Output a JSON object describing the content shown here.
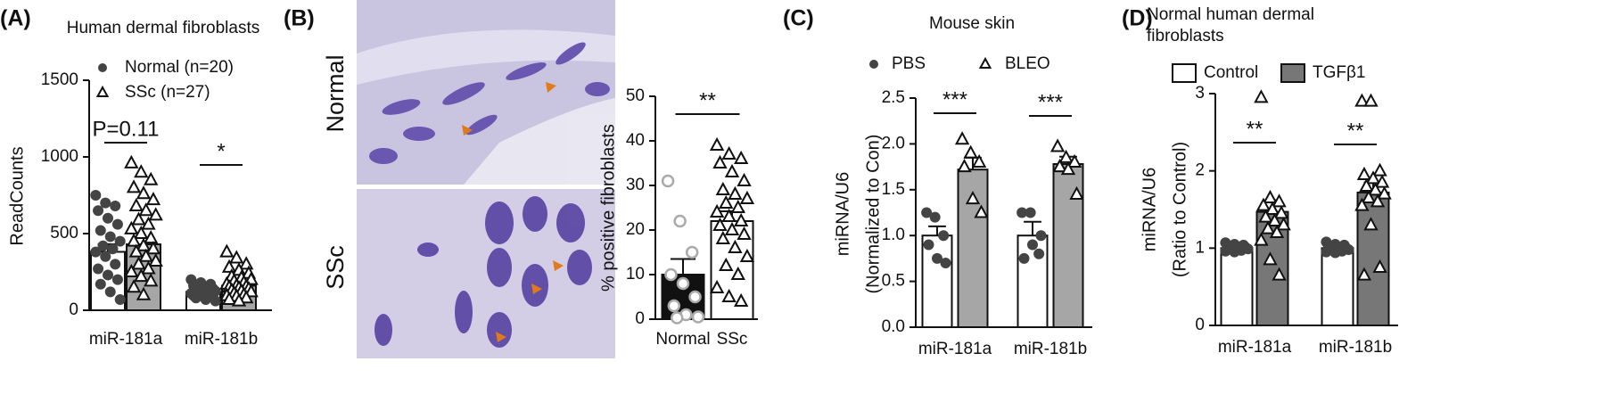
{
  "chart_data": [
    {
      "type": "bar",
      "panel": "(A)",
      "title": "Human dermal fibroblasts",
      "ylabel": "ReadCounts",
      "categories": [
        "miR-181a",
        "miR-181b"
      ],
      "ylim": [
        0,
        1500
      ],
      "yticks": [
        0,
        500,
        1000,
        1500
      ],
      "series": [
        {
          "name": "Normal (n=20)",
          "color": "#ffffff",
          "marker": "circle",
          "point_color": "#444444",
          "values": [
            381,
            120
          ],
          "errors": [
            50,
            10
          ],
          "points": [
            [
              750,
              700,
              680,
              650,
              600,
              560,
              520,
              480,
              450,
              420,
              400,
              380,
              350,
              300,
              270,
              230,
              200,
              170,
              120,
              70
            ],
            [
              200,
              180,
              170,
              160,
              150,
              140,
              135,
              130,
              125,
              120,
              115,
              110,
              105,
              100,
              95,
              90,
              85,
              80,
              70,
              60
            ]
          ]
        },
        {
          "name": "SSc (n=27)",
          "color": "#a6a6a6",
          "marker": "triangle",
          "point_color": "#111111",
          "values": [
            430,
            160
          ],
          "errors": [
            45,
            15
          ],
          "points": [
            [
              960,
              900,
              850,
              800,
              760,
              720,
              680,
              650,
              620,
              590,
              560,
              530,
              500,
              470,
              450,
              420,
              400,
              380,
              350,
              320,
              300,
              270,
              250,
              220,
              190,
              150,
              100
            ],
            [
              380,
              340,
              300,
              280,
              260,
              240,
              220,
              210,
              200,
              190,
              180,
              170,
              160,
              155,
              150,
              145,
              140,
              130,
              125,
              120,
              110,
              100,
              95,
              90,
              80,
              70,
              60
            ]
          ]
        }
      ],
      "significance": [
        "P=0.11",
        "*"
      ]
    },
    {
      "type": "bar",
      "panel": "(B)",
      "image_labels": [
        "Normal",
        "SSc"
      ],
      "ylabel": "% positive fibroblasts",
      "categories": [
        "Normal",
        "SSc"
      ],
      "ylim": [
        0,
        50
      ],
      "yticks": [
        0,
        10,
        20,
        30,
        40,
        50
      ],
      "values": [
        10,
        22
      ],
      "errors": [
        3.5,
        2.2
      ],
      "colors": [
        "#111111",
        "#ffffff"
      ],
      "markers": [
        "open-circle",
        "triangle"
      ],
      "point_colors": [
        "#aaaaaa",
        "#111111"
      ],
      "points": [
        [
          31,
          22,
          15,
          10,
          8,
          5,
          3,
          1,
          0.5,
          0.3
        ],
        [
          39,
          37,
          36,
          35,
          33,
          31,
          29,
          28,
          27,
          26,
          25,
          24,
          23,
          22,
          21,
          20,
          19,
          18,
          16,
          14,
          12,
          10,
          7,
          5,
          4
        ]
      ],
      "significance": [
        "**"
      ]
    },
    {
      "type": "bar",
      "panel": "(C)",
      "title": "Mouse skin",
      "ylabel": [
        "miRNA/U6",
        "(Normalized to Con)"
      ],
      "categories": [
        "miR-181a",
        "miR-181b"
      ],
      "ylim": [
        0,
        2.5
      ],
      "yticks": [
        {
          "value": 0,
          "label": "0.0"
        },
        0.5,
        {
          "value": 1,
          "label": "1.0"
        },
        1.5,
        {
          "value": 2,
          "label": "2.0"
        },
        2.5
      ],
      "series": [
        {
          "name": "PBS",
          "color": "#ffffff",
          "marker": "circle",
          "point_color": "#444444",
          "values": [
            1.0,
            1.0
          ],
          "errors": [
            0.1,
            0.15
          ],
          "points": [
            [
              1.25,
              1.2,
              1.0,
              0.9,
              0.75,
              0.7
            ],
            [
              1.25,
              1.25,
              0.8,
              0.75,
              0.9,
              1.0
            ]
          ]
        },
        {
          "name": "BLEO",
          "color": "#a6a6a6",
          "marker": "triangle",
          "point_color": "#111111",
          "values": [
            1.72,
            1.78
          ],
          "errors": [
            0.13,
            0.08
          ],
          "points": [
            [
              2.05,
              1.9,
              1.8,
              1.75,
              1.4,
              1.25
            ],
            [
              1.97,
              1.85,
              1.8,
              1.75,
              1.72,
              1.45
            ]
          ]
        }
      ],
      "significance": [
        "***",
        "***"
      ]
    },
    {
      "type": "bar",
      "panel": "(D)",
      "title": [
        "Normal human dermal",
        "fibroblasts"
      ],
      "ylabel": [
        "miRNA/U6",
        "(Ratio to Control)"
      ],
      "categories": [
        "miR-181a",
        "miR-181b"
      ],
      "ylim": [
        0,
        3
      ],
      "yticks": [
        0,
        1,
        2,
        3
      ],
      "legend_marker": "square",
      "series": [
        {
          "name": "Control",
          "color": "#ffffff",
          "marker": "circle",
          "point_color": "#444444",
          "values": [
            1.0,
            1.0
          ],
          "errors": [
            0.02,
            0.02
          ],
          "points": [
            [
              1.07,
              1.05,
              1.04,
              1.03,
              1.02,
              1.01,
              1.0,
              1.0,
              0.99,
              0.98,
              0.97,
              0.96,
              0.95
            ],
            [
              1.08,
              1.05,
              1.04,
              1.02,
              1.01,
              1.0,
              1.0,
              0.99,
              0.98,
              0.97,
              0.96,
              0.95,
              0.94
            ]
          ]
        },
        {
          "name": "TGFβ1",
          "color": "#777777",
          "marker": "triangle",
          "point_color": "#111111",
          "values": [
            1.47,
            1.72
          ],
          "errors": [
            0.15,
            0.13
          ],
          "points": [
            [
              2.95,
              1.65,
              1.6,
              1.55,
              1.5,
              1.45,
              1.4,
              1.35,
              1.3,
              1.25,
              1.2,
              1.1,
              0.85,
              0.65
            ],
            [
              2.9,
              2.9,
              2.0,
              1.95,
              1.9,
              1.85,
              1.8,
              1.75,
              1.7,
              1.65,
              1.6,
              1.55,
              1.3,
              0.75,
              0.65
            ]
          ]
        }
      ],
      "significance": [
        "**",
        "**"
      ]
    }
  ]
}
